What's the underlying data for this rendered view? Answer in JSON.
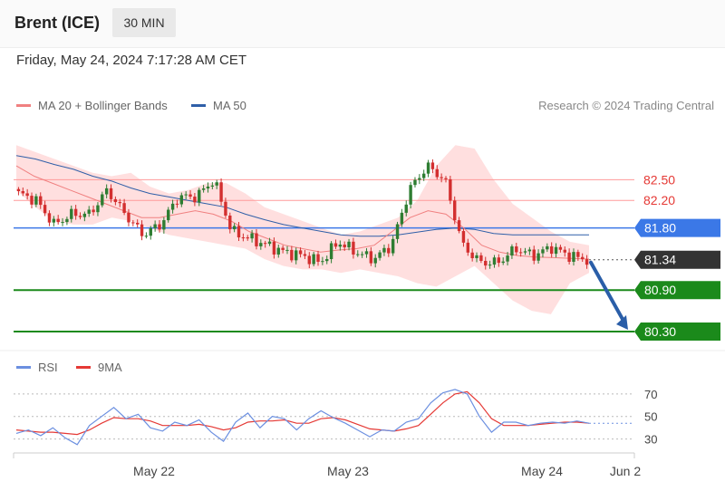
{
  "header": {
    "instrument": "Brent (ICE)",
    "timeframe": "30 MIN",
    "datetime": "Friday, May 24, 2024 7:17:28 AM CET"
  },
  "legend": {
    "ma20_label": "MA 20 + Bollinger Bands",
    "ma50_label": "MA 50",
    "copyright": "Research © 2024 Trading Central",
    "rsi_label": "RSI",
    "rsi_ma_label": "9MA"
  },
  "colors": {
    "ma20": "#f08080",
    "ma50": "#2f5fa8",
    "bollinger_fill": "#ffd9d9",
    "up_candle": "#2e7d32",
    "down_candle": "#d32f2f",
    "support": "#1b8a1b",
    "resistance_light": "#ff9a9a",
    "pivot": "#3b78e7",
    "last_price": "#333333",
    "arrow": "#2a5ea8",
    "rsi": "#6b8fe0",
    "rsi_ma": "#e53935"
  },
  "chart_data": [
    {
      "type": "candlestick",
      "x_ticks": [
        "May 22",
        "May 23",
        "May 24",
        "Jun 2"
      ],
      "ylim": [
        80.05,
        83.2
      ],
      "levels": [
        {
          "value": 82.5,
          "label": "82.50",
          "role": "resistance"
        },
        {
          "value": 82.2,
          "label": "82.20",
          "role": "resistance"
        },
        {
          "value": 81.8,
          "label": "81.80",
          "role": "pivot"
        },
        {
          "value": 81.34,
          "label": "81.34",
          "role": "last"
        },
        {
          "value": 80.9,
          "label": "80.90",
          "role": "support"
        },
        {
          "value": 80.3,
          "label": "80.30",
          "role": "support"
        }
      ],
      "forecast_arrow": {
        "from_value": 81.34,
        "to_value": 80.3,
        "direction": "down"
      },
      "close_path": [
        82.3,
        82.2,
        81.85,
        82.0,
        82.0,
        82.35,
        82.0,
        81.7,
        81.85,
        82.25,
        82.25,
        82.5,
        81.75,
        81.65,
        81.55,
        81.45,
        81.4,
        81.3,
        81.6,
        81.45,
        81.35,
        81.55,
        82.35,
        82.7,
        82.5,
        81.55,
        81.3,
        81.3,
        81.5,
        81.4,
        81.52,
        81.4,
        81.34
      ],
      "ma20_path": [
        82.7,
        82.55,
        82.45,
        82.35,
        82.25,
        82.15,
        82.05,
        81.95,
        81.95,
        82.0,
        82.05,
        82.0,
        81.9,
        81.75,
        81.65,
        81.55,
        81.5,
        81.45,
        81.48,
        81.5,
        81.55,
        81.75,
        81.95,
        82.05,
        82.0,
        81.8,
        81.55,
        81.45,
        81.4,
        81.38,
        81.37,
        81.36,
        81.35
      ],
      "ma50_path": [
        82.85,
        82.8,
        82.72,
        82.65,
        82.55,
        82.48,
        82.38,
        82.3,
        82.25,
        82.2,
        82.15,
        82.1,
        82.0,
        81.92,
        81.85,
        81.8,
        81.75,
        81.7,
        81.68,
        81.68,
        81.7,
        81.74,
        81.78,
        81.8,
        81.78,
        81.72,
        81.7,
        81.7,
        81.7,
        81.7,
        81.7
      ],
      "bb_upper_path": [
        83.0,
        82.9,
        82.8,
        82.7,
        82.6,
        82.55,
        82.6,
        82.4,
        82.3,
        82.35,
        82.45,
        82.45,
        82.3,
        82.1,
        82.0,
        81.9,
        81.8,
        81.7,
        81.75,
        81.85,
        81.95,
        82.2,
        82.7,
        83.0,
        82.95,
        82.5,
        82.15,
        81.95,
        81.75,
        81.6,
        81.55
      ],
      "bb_lower_path": [
        82.35,
        82.1,
        81.9,
        81.85,
        81.85,
        81.95,
        81.9,
        81.8,
        81.7,
        81.65,
        81.6,
        81.55,
        81.5,
        81.35,
        81.25,
        81.2,
        81.2,
        81.15,
        81.2,
        81.15,
        81.1,
        81.0,
        80.95,
        81.1,
        81.25,
        81.0,
        80.75,
        80.6,
        80.55,
        81.0,
        81.15
      ]
    },
    {
      "type": "line",
      "ylim": [
        20,
        82
      ],
      "y_ticks": [
        30,
        50,
        70
      ],
      "series": [
        {
          "name": "RSI",
          "values": [
            35,
            38,
            33,
            40,
            31,
            25,
            42,
            50,
            58,
            48,
            52,
            40,
            37,
            45,
            42,
            47,
            36,
            28,
            45,
            53,
            40,
            50,
            48,
            38,
            48,
            55,
            49,
            44,
            38,
            32,
            38,
            37,
            45,
            48,
            62,
            71,
            74,
            70,
            50,
            36,
            45,
            45,
            42,
            44,
            45,
            44,
            46,
            44
          ]
        },
        {
          "name": "9MA",
          "values": [
            38,
            37,
            36,
            36,
            35,
            34,
            38,
            44,
            49,
            48,
            48,
            46,
            42,
            42,
            42,
            43,
            41,
            38,
            40,
            45,
            46,
            46,
            47,
            44,
            44,
            48,
            49,
            47,
            43,
            39,
            38,
            37,
            39,
            42,
            52,
            62,
            70,
            72,
            62,
            48,
            42,
            42,
            42,
            43,
            44,
            45,
            45,
            44
          ]
        }
      ]
    }
  ]
}
